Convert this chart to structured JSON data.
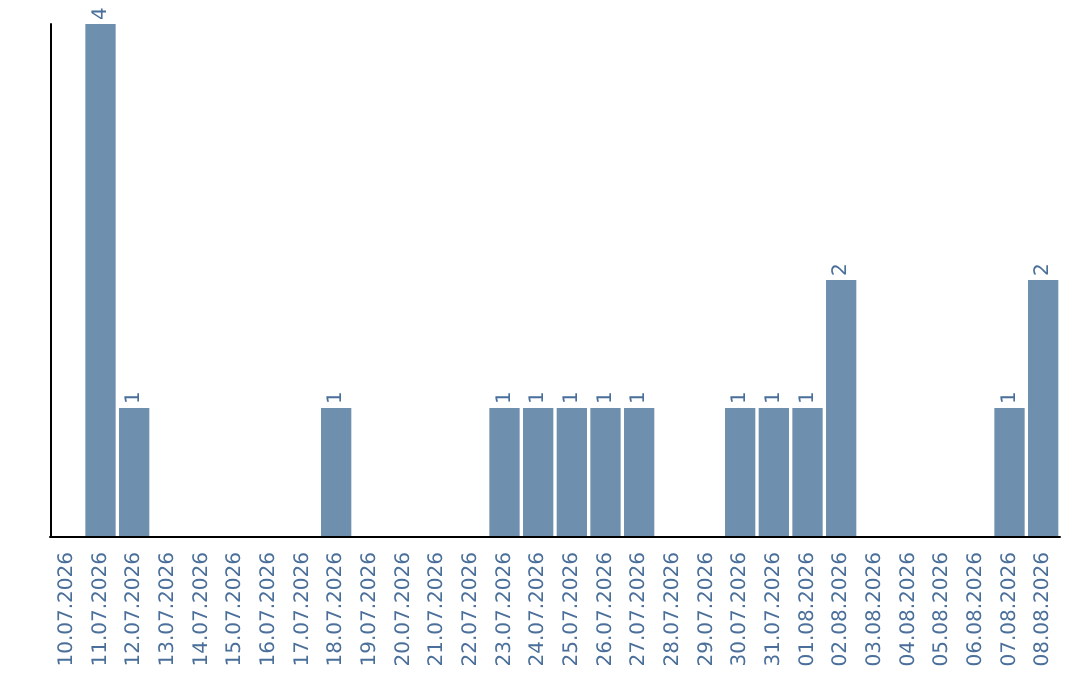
{
  "chart_data": {
    "type": "bar",
    "categories": [
      "10.07.2026",
      "11.07.2026",
      "12.07.2026",
      "13.07.2026",
      "14.07.2026",
      "15.07.2026",
      "16.07.2026",
      "17.07.2026",
      "18.07.2026",
      "19.07.2026",
      "20.07.2026",
      "21.07.2026",
      "22.07.2026",
      "23.07.2026",
      "24.07.2026",
      "25.07.2026",
      "26.07.2026",
      "27.07.2026",
      "28.07.2026",
      "29.07.2026",
      "30.07.2026",
      "31.07.2026",
      "01.08.2026",
      "02.08.2026",
      "03.08.2026",
      "04.08.2026",
      "05.08.2026",
      "06.08.2026",
      "07.08.2026",
      "08.08.2026"
    ],
    "values": [
      0,
      4,
      1,
      0,
      0,
      0,
      0,
      0,
      1,
      0,
      0,
      0,
      0,
      1,
      1,
      1,
      1,
      1,
      0,
      0,
      1,
      1,
      1,
      2,
      0,
      0,
      0,
      0,
      1,
      2
    ],
    "value_labels": [
      null,
      "4",
      "1",
      null,
      null,
      null,
      null,
      null,
      "1",
      null,
      null,
      null,
      null,
      "1",
      "1",
      "1",
      "1",
      "1",
      null,
      null,
      "1",
      "1",
      "1",
      "2",
      null,
      null,
      null,
      null,
      "1",
      "2"
    ],
    "color": "#6e8fad",
    "tick_labels": "x",
    "grid": false
  }
}
